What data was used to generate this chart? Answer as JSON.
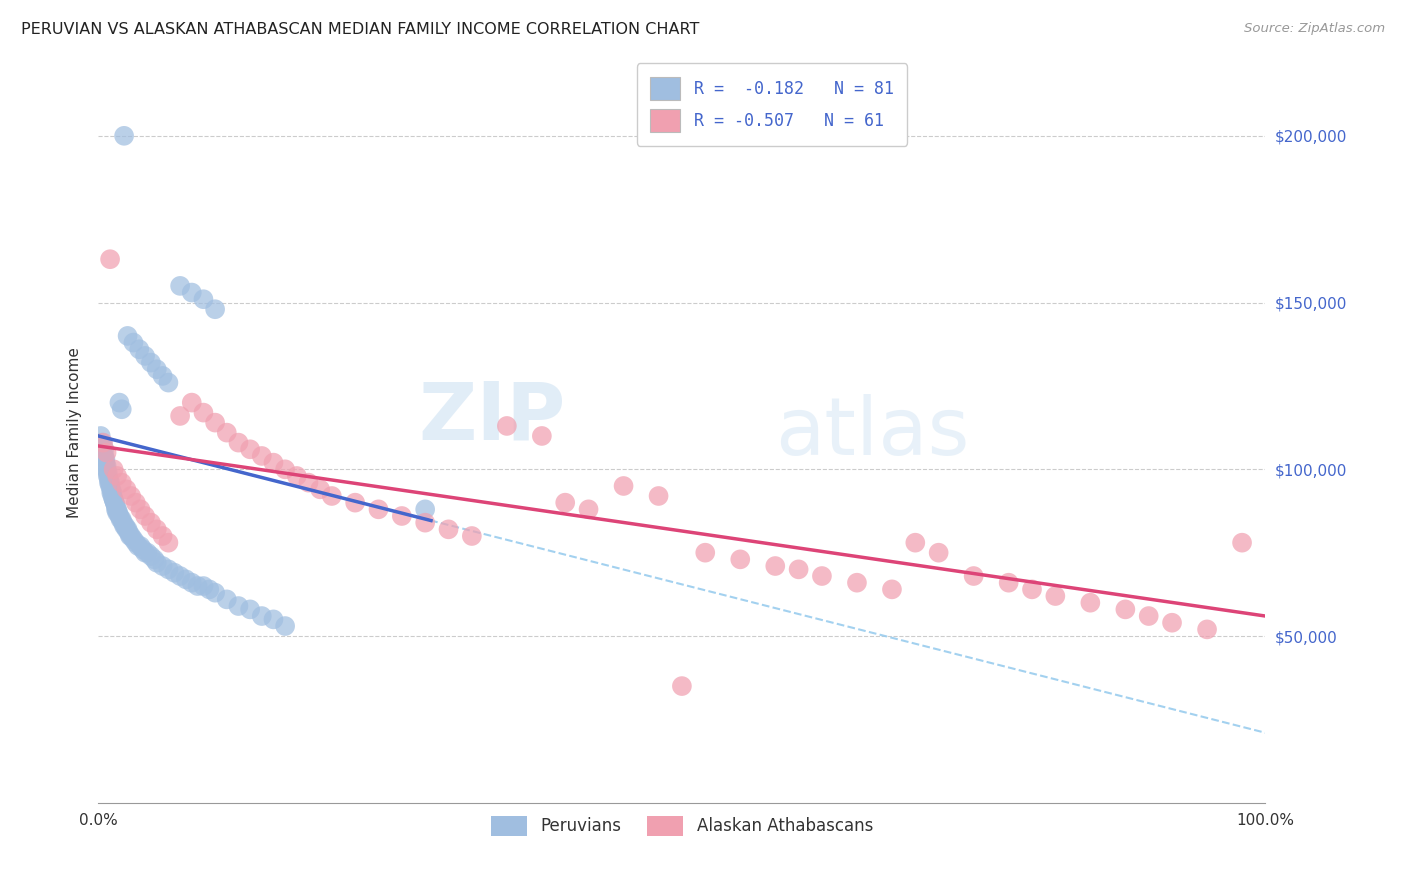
{
  "title": "PERUVIAN VS ALASKAN ATHABASCAN MEDIAN FAMILY INCOME CORRELATION CHART",
  "source": "Source: ZipAtlas.com",
  "ylabel": "Median Family Income",
  "blue_color": "#A0BEE0",
  "blue_line_color": "#4466CC",
  "pink_color": "#F0A0B0",
  "pink_line_color": "#DD4477",
  "dashed_color": "#99CCEE",
  "legend_R_blue": "R =  -0.182",
  "legend_N_blue": "N = 81",
  "legend_R_pink": "R = -0.507",
  "legend_N_pink": "N = 61",
  "xmin": 0.0,
  "xmax": 1.0,
  "ymin": 0,
  "ymax": 222000,
  "yticks": [
    50000,
    100000,
    150000,
    200000
  ],
  "blue_x": [
    0.002,
    0.003,
    0.004,
    0.005,
    0.005,
    0.006,
    0.006,
    0.007,
    0.007,
    0.008,
    0.008,
    0.009,
    0.009,
    0.01,
    0.01,
    0.011,
    0.011,
    0.012,
    0.012,
    0.013,
    0.013,
    0.014,
    0.014,
    0.015,
    0.015,
    0.016,
    0.016,
    0.017,
    0.018,
    0.019,
    0.02,
    0.021,
    0.022,
    0.023,
    0.024,
    0.025,
    0.026,
    0.027,
    0.028,
    0.03,
    0.032,
    0.034,
    0.036,
    0.038,
    0.04,
    0.042,
    0.045,
    0.048,
    0.05,
    0.055,
    0.06,
    0.065,
    0.07,
    0.075,
    0.08,
    0.085,
    0.09,
    0.095,
    0.1,
    0.11,
    0.12,
    0.13,
    0.14,
    0.15,
    0.16,
    0.018,
    0.02,
    0.025,
    0.03,
    0.035,
    0.04,
    0.045,
    0.05,
    0.055,
    0.06,
    0.07,
    0.08,
    0.09,
    0.1,
    0.28,
    0.022
  ],
  "blue_y": [
    110000,
    108000,
    107000,
    106000,
    104000,
    103000,
    102000,
    101000,
    100000,
    99000,
    98000,
    97000,
    96000,
    96000,
    95000,
    94000,
    93000,
    93000,
    92000,
    91000,
    91000,
    90000,
    90000,
    89000,
    88000,
    88000,
    87000,
    87000,
    86000,
    85000,
    85000,
    84000,
    83000,
    83000,
    82000,
    82000,
    81000,
    80000,
    80000,
    79000,
    78000,
    77000,
    77000,
    76000,
    75000,
    75000,
    74000,
    73000,
    72000,
    71000,
    70000,
    69000,
    68000,
    67000,
    66000,
    65000,
    65000,
    64000,
    63000,
    61000,
    59000,
    58000,
    56000,
    55000,
    53000,
    120000,
    118000,
    140000,
    138000,
    136000,
    134000,
    132000,
    130000,
    128000,
    126000,
    155000,
    153000,
    151000,
    148000,
    88000,
    200000
  ],
  "pink_x": [
    0.004,
    0.007,
    0.01,
    0.013,
    0.016,
    0.02,
    0.024,
    0.028,
    0.032,
    0.036,
    0.04,
    0.045,
    0.05,
    0.055,
    0.06,
    0.07,
    0.08,
    0.09,
    0.1,
    0.11,
    0.12,
    0.13,
    0.14,
    0.15,
    0.16,
    0.17,
    0.18,
    0.19,
    0.2,
    0.22,
    0.24,
    0.26,
    0.28,
    0.3,
    0.32,
    0.35,
    0.38,
    0.4,
    0.42,
    0.45,
    0.48,
    0.5,
    0.52,
    0.55,
    0.58,
    0.6,
    0.62,
    0.65,
    0.68,
    0.7,
    0.72,
    0.75,
    0.78,
    0.8,
    0.82,
    0.85,
    0.88,
    0.9,
    0.92,
    0.95,
    0.98
  ],
  "pink_y": [
    108000,
    105000,
    163000,
    100000,
    98000,
    96000,
    94000,
    92000,
    90000,
    88000,
    86000,
    84000,
    82000,
    80000,
    78000,
    116000,
    120000,
    117000,
    114000,
    111000,
    108000,
    106000,
    104000,
    102000,
    100000,
    98000,
    96000,
    94000,
    92000,
    90000,
    88000,
    86000,
    84000,
    82000,
    80000,
    113000,
    110000,
    90000,
    88000,
    95000,
    92000,
    35000,
    75000,
    73000,
    71000,
    70000,
    68000,
    66000,
    64000,
    78000,
    75000,
    68000,
    66000,
    64000,
    62000,
    60000,
    58000,
    56000,
    54000,
    52000,
    78000
  ]
}
